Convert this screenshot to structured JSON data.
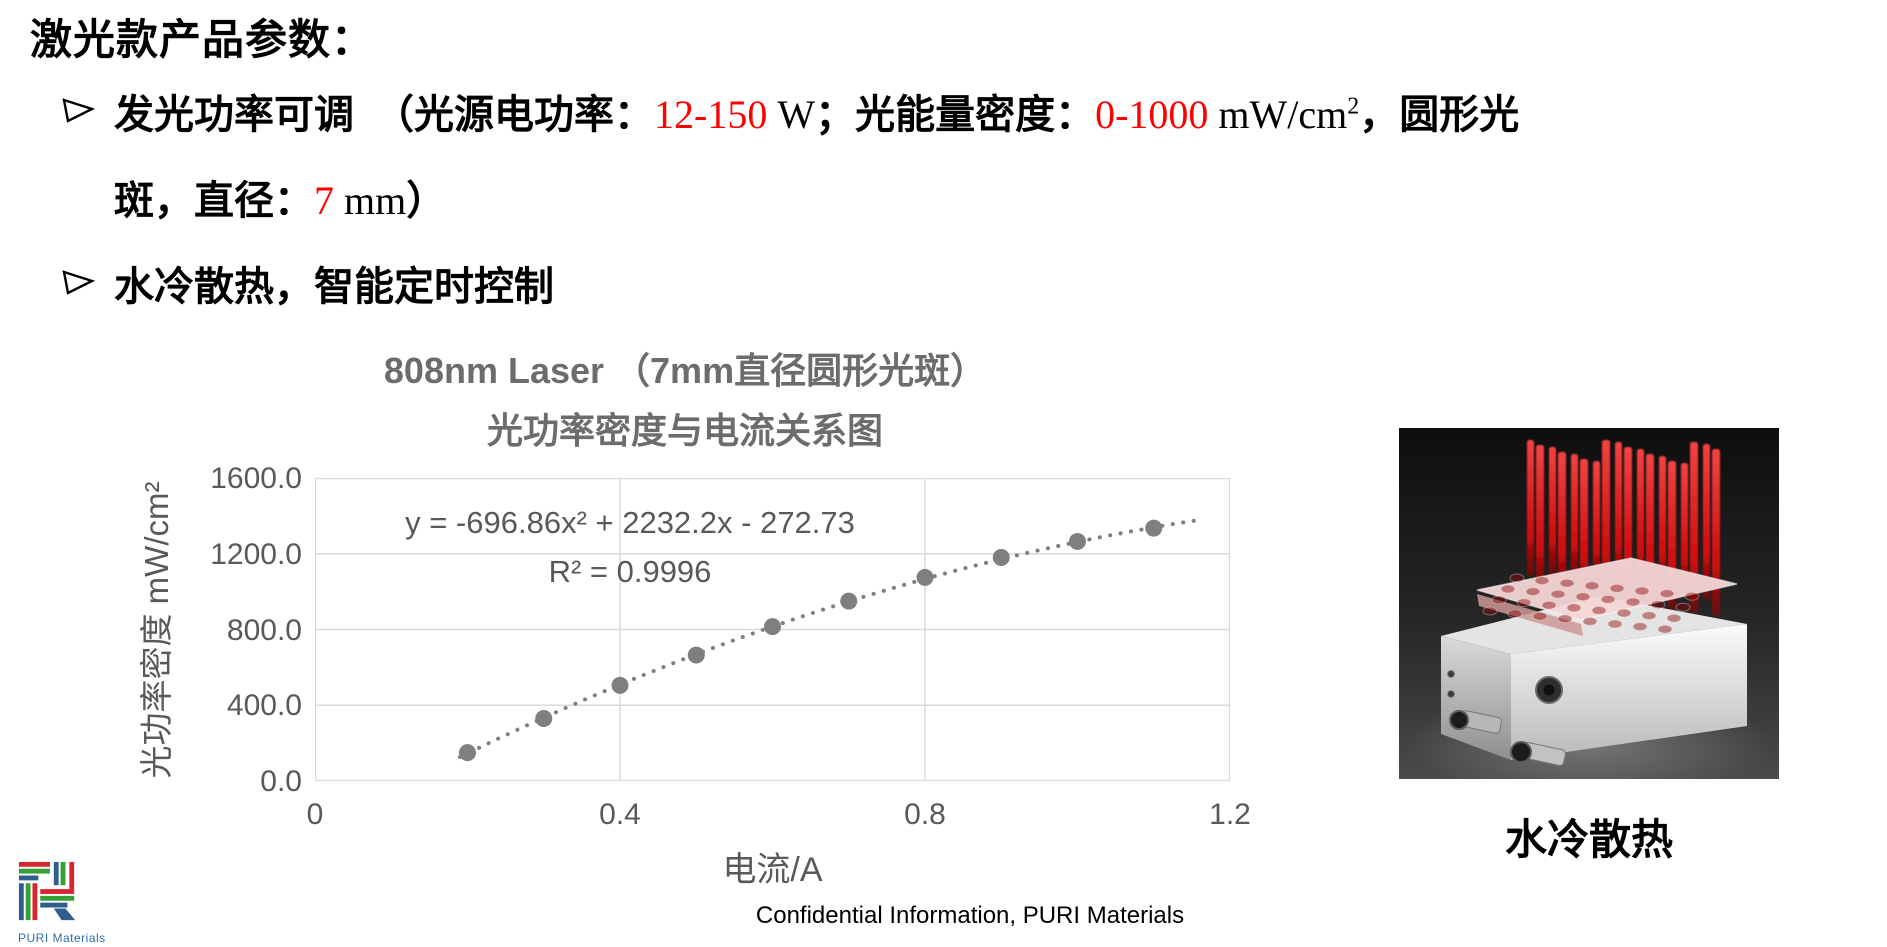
{
  "page": {
    "title": "激光款产品参数：",
    "bullets": [
      {
        "segments": [
          {
            "t": "发光功率可调　（光源电功率：",
            "s": "k"
          },
          {
            "t": "12-150",
            "s": "r"
          },
          {
            "t": " W",
            "s": "t"
          },
          {
            "t": "；光能量密度：",
            "s": "k"
          },
          {
            "t": "0-1000",
            "s": "r"
          },
          {
            "t": " mW/cm",
            "s": "t"
          },
          {
            "t": "2",
            "s": "t",
            "sup": true
          },
          {
            "t": "，圆形光",
            "s": "k"
          },
          {
            "br": true
          },
          {
            "t": "斑，直径：",
            "s": "k"
          },
          {
            "t": "7",
            "s": "r"
          },
          {
            "t": " mm",
            "s": "t"
          },
          {
            "t": "）",
            "s": "k"
          }
        ]
      },
      {
        "segments": [
          {
            "t": "水冷散热，智能定时控制",
            "s": "k"
          }
        ]
      }
    ],
    "bullet_icon": "arrow-right",
    "footer": "Confidential Information, PURI Materials",
    "colors": {
      "red_text": "#FF0000"
    }
  },
  "chart_data": {
    "type": "scatter",
    "title_line1": "808nm Laser （7mm直径圆形光斑）",
    "title_line2": "光功率密度与电流关系图",
    "xlabel": "电流/A",
    "ylabel": "光功率密度 mW/cm²",
    "x": [
      0.2,
      0.3,
      0.4,
      0.5,
      0.6,
      0.7,
      0.8,
      0.9,
      1.0,
      1.1
    ],
    "y": [
      150,
      330,
      505,
      665,
      815,
      950,
      1075,
      1180,
      1265,
      1335
    ],
    "xlim": [
      0,
      1.2
    ],
    "ylim": [
      0,
      1600
    ],
    "xticks": [
      "0",
      "0.4",
      "0.8",
      "1.2"
    ],
    "yticks": [
      "0.0",
      "400.0",
      "800.0",
      "1200.0",
      "1600.0"
    ],
    "grid": true,
    "legend": "none",
    "trendline": {
      "equation": "y = -696.86x² + 2232.2x - 272.73",
      "r2": "R² = 0.9996",
      "a": -696.86,
      "b": 2232.2,
      "c": -272.73,
      "x_start": 0.19,
      "x_end": 1.16,
      "style": "dotted"
    },
    "colors": {
      "marker": "#7F7F7F",
      "grid": "#D9D9D9",
      "text": "#595959"
    }
  },
  "product": {
    "caption": "水冷散热",
    "description_icon": "laser-array-device-photo",
    "colors": {
      "beam": "#E31212",
      "body": "#E9E9E9",
      "background": "#1C1C1C"
    }
  },
  "logo": {
    "caption": "PURI Materials",
    "colors": {
      "red": "#D7282F",
      "green": "#379F38",
      "blue": "#2E5F8A",
      "text": "#2F6DA8"
    }
  }
}
